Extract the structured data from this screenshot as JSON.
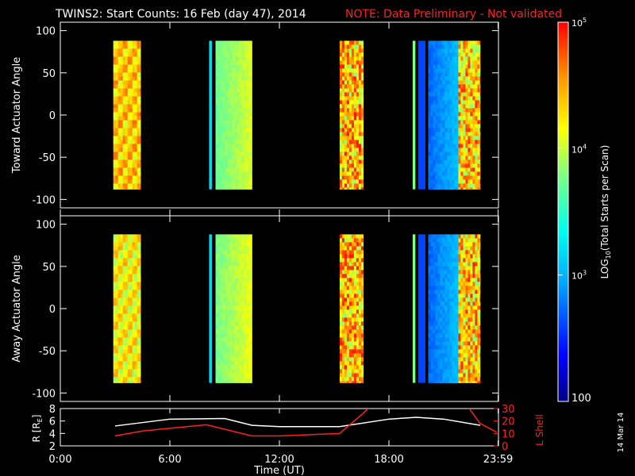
{
  "title": {
    "main": "TWINS2: Start Counts: 16 Feb (day  47), 2014",
    "note": "NOTE: Data Preliminary - Not validated",
    "note_color": "#ff2020"
  },
  "date_stamp": "14 Mar 14",
  "chart_data": [
    {
      "type": "heatmap",
      "panel": "toward",
      "ylabel": "Toward Actuator Angle",
      "ylim": [
        -110,
        110
      ],
      "yticks": [
        "100",
        "50",
        "0",
        "-50",
        "-100"
      ],
      "xlim_hours": [
        0,
        24
      ],
      "data_range_deg": [
        -88,
        88
      ],
      "blocks": [
        {
          "start": 2.9,
          "end": 4.4,
          "level": 4.35,
          "pattern": "bands"
        },
        {
          "start": 8.15,
          "end": 8.3,
          "level": 3.2,
          "pattern": "solid"
        },
        {
          "start": 8.5,
          "end": 10.5,
          "level": 3.9,
          "pattern": "gradient"
        },
        {
          "start": 15.3,
          "end": 16.6,
          "level": 4.4,
          "pattern": "noisy"
        },
        {
          "start": 19.3,
          "end": 19.45,
          "level": 3.8,
          "pattern": "solid"
        },
        {
          "start": 19.6,
          "end": 20.0,
          "level": 2.6,
          "pattern": "solid"
        },
        {
          "start": 20.15,
          "end": 21.8,
          "level": 2.9,
          "pattern": "gradient"
        },
        {
          "start": 21.8,
          "end": 23.0,
          "level": 4.35,
          "pattern": "noisy"
        }
      ]
    },
    {
      "type": "heatmap",
      "panel": "away",
      "ylabel": "Away Actuator Angle",
      "ylim": [
        -110,
        110
      ],
      "yticks": [
        "100",
        "50",
        "0",
        "-50",
        "-100"
      ],
      "xlim_hours": [
        0,
        24
      ],
      "data_range_deg": [
        -88,
        88
      ],
      "blocks": [
        {
          "start": 2.9,
          "end": 4.4,
          "level": 4.2,
          "pattern": "bands"
        },
        {
          "start": 8.15,
          "end": 8.3,
          "level": 3.2,
          "pattern": "solid"
        },
        {
          "start": 8.5,
          "end": 10.5,
          "level": 3.95,
          "pattern": "gradient"
        },
        {
          "start": 15.3,
          "end": 16.6,
          "level": 4.4,
          "pattern": "noisy"
        },
        {
          "start": 19.3,
          "end": 19.45,
          "level": 3.8,
          "pattern": "solid"
        },
        {
          "start": 19.6,
          "end": 20.0,
          "level": 2.6,
          "pattern": "solid"
        },
        {
          "start": 20.15,
          "end": 21.8,
          "level": 2.9,
          "pattern": "gradient"
        },
        {
          "start": 21.8,
          "end": 23.0,
          "level": 4.35,
          "pattern": "noisy"
        }
      ]
    },
    {
      "type": "line",
      "panel": "orbit",
      "ylabel_left": "R [R",
      "ylabel_left_sub": "E",
      "ylabel_left_close": "]",
      "ylabel_right": "L Shell",
      "ylim_left": [
        2,
        8
      ],
      "ylim_right": [
        0,
        30
      ],
      "left_ticks": [
        "8",
        "6",
        "4",
        "2"
      ],
      "right_ticks": [
        "30",
        "20",
        "10",
        "0"
      ],
      "xlabel": "Time (UT)",
      "xtick_labels": [
        "0:00",
        "6:00",
        "12:00",
        "18:00",
        "23:59"
      ],
      "xtick_hours": [
        0,
        6,
        12,
        18,
        23.98
      ],
      "series": [
        {
          "color": "#ffffff",
          "x": [
            3,
            6,
            9,
            10.5,
            12,
            15.3,
            18,
            19.5,
            21,
            23
          ],
          "y": [
            5.2,
            6.3,
            6.4,
            5.3,
            5.1,
            5.1,
            6.3,
            6.6,
            6.3,
            5.3
          ]
        },
        {
          "color": "#ff2020",
          "x": [
            3,
            4.5,
            8,
            10.5,
            12,
            15.3,
            16.5,
            17
          ],
          "y": [
            8,
            12,
            17,
            8,
            8,
            10,
            25,
            32
          ]
        },
        {
          "color": "#ff2020",
          "x": [
            22.3,
            23,
            23.9
          ],
          "y": [
            32,
            18,
            11
          ]
        }
      ]
    }
  ],
  "colorbar": {
    "label": "LOG10(Total Starts per Scan)",
    "label_parts": [
      "LOG",
      "10",
      "(Total Starts per Scan)"
    ],
    "min_label": "100",
    "ticks": [
      {
        "base": "10",
        "exp": "3",
        "value": 3
      },
      {
        "base": "10",
        "exp": "4",
        "value": 4
      },
      {
        "base": "10",
        "exp": "5",
        "value": 5
      }
    ],
    "range": [
      2,
      5
    ]
  }
}
